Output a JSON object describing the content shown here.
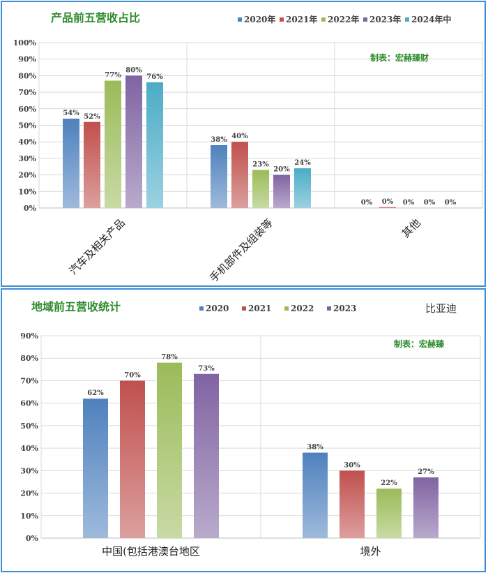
{
  "chart_data": [
    {
      "type": "bar",
      "title": "产品前五营收占比",
      "watermark": "制表：宏赫臻财",
      "categories": [
        "汽车及相关产品",
        "手机部件及组装等",
        "其他"
      ],
      "series": [
        {
          "name": "2020年",
          "color": "#4f81bd",
          "values": [
            54,
            38,
            0
          ],
          "labels": [
            "54%",
            "38%",
            "0%"
          ]
        },
        {
          "name": "2021年",
          "color": "#c0504d",
          "values": [
            52,
            40,
            0.5
          ],
          "labels": [
            "52%",
            "40%",
            "0%"
          ]
        },
        {
          "name": "2022年",
          "color": "#9bbb59",
          "values": [
            77,
            23,
            0
          ],
          "labels": [
            "77%",
            "23%",
            "0%"
          ]
        },
        {
          "name": "2023年",
          "color": "#8064a2",
          "values": [
            80,
            20,
            0
          ],
          "labels": [
            "80%",
            "20%",
            "0%"
          ]
        },
        {
          "name": "2024年中",
          "color": "#4bacc6",
          "values": [
            76,
            24,
            0
          ],
          "labels": [
            "76%",
            "24%",
            "0%"
          ]
        }
      ],
      "yticks": [
        "0%",
        "10%",
        "20%",
        "30%",
        "40%",
        "50%",
        "60%",
        "70%",
        "80%",
        "90%",
        "100%"
      ],
      "ylim": [
        0,
        100
      ],
      "grid": true,
      "legend_position": "top"
    },
    {
      "type": "bar",
      "title": "地域前五营收统计",
      "company": "比亚迪",
      "watermark": "制表：宏赫臻",
      "categories": [
        "中国(包括港澳台地区",
        "境外"
      ],
      "series": [
        {
          "name": "2020",
          "color": "#4f81bd",
          "values": [
            62,
            38
          ],
          "labels": [
            "62%",
            "38%"
          ]
        },
        {
          "name": "2021",
          "color": "#c0504d",
          "values": [
            70,
            30
          ],
          "labels": [
            "70%",
            "30%"
          ]
        },
        {
          "name": "2022",
          "color": "#9bbb59",
          "values": [
            78,
            22
          ],
          "labels": [
            "78%",
            "22%"
          ]
        },
        {
          "name": "2023",
          "color": "#8064a2",
          "values": [
            73,
            27
          ],
          "labels": [
            "73%",
            "27%"
          ]
        }
      ],
      "yticks": [
        "0%",
        "10%",
        "20%",
        "30%",
        "40%",
        "50%",
        "60%",
        "70%",
        "80%",
        "90%"
      ],
      "ylim": [
        0,
        90
      ],
      "grid": true,
      "legend_position": "top"
    }
  ]
}
